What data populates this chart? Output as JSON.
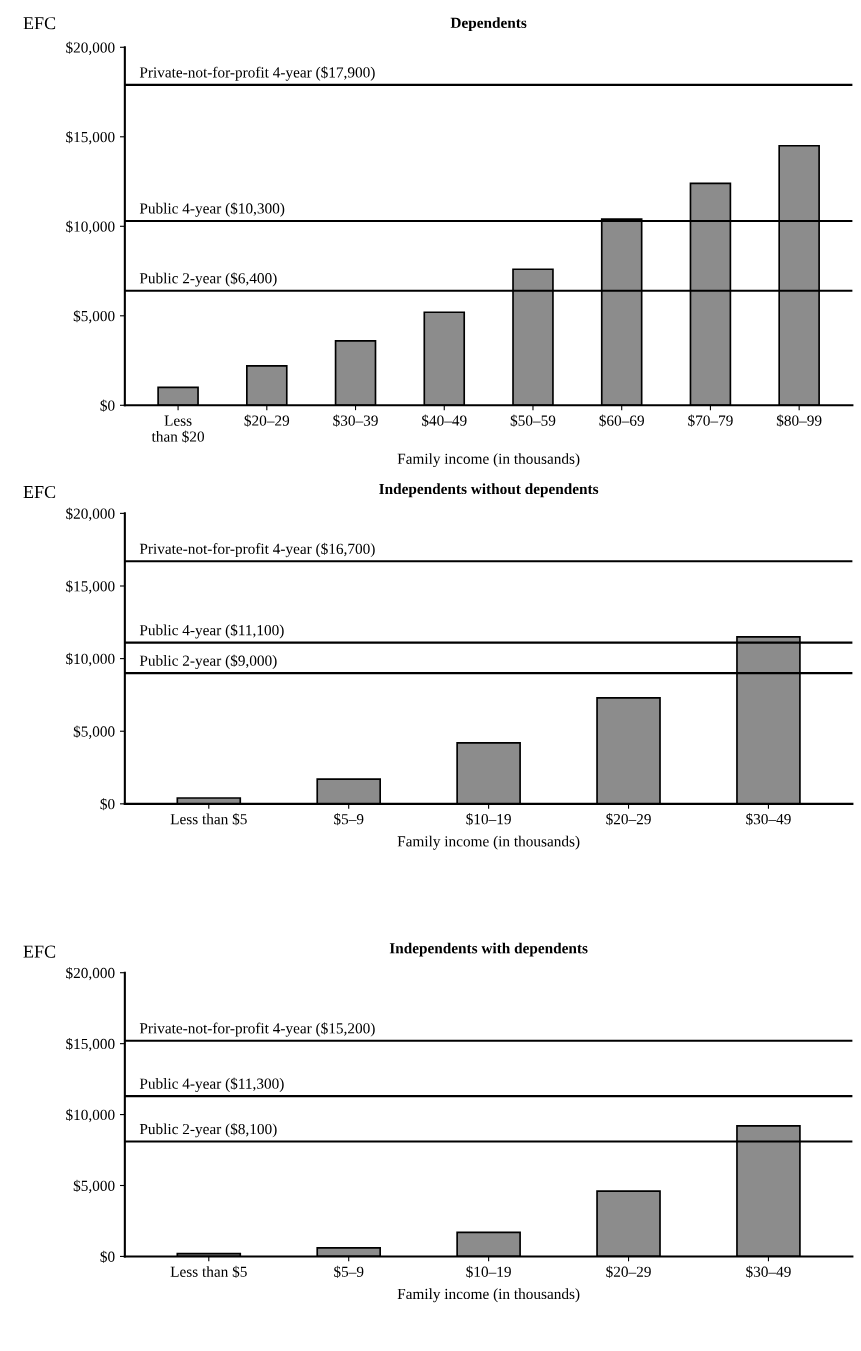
{
  "chart_data": [
    {
      "type": "bar",
      "title": "Dependents",
      "ylabel": "EFC",
      "xlabel": "Family income (in thousands)",
      "categories": [
        "Less\nthan $20",
        "$20–29",
        "$30–39",
        "$40–49",
        "$50–59",
        "$60–69",
        "$70–79",
        "$80–99"
      ],
      "values": [
        1000,
        2200,
        3600,
        5200,
        7600,
        10400,
        12400,
        14500
      ],
      "color": "#8c8c8c",
      "ylim": [
        0,
        20000
      ],
      "yticks": [
        {
          "value": 0,
          "label": "$0"
        },
        {
          "value": 5000,
          "label": "$5,000"
        },
        {
          "value": 10000,
          "label": "$10,000"
        },
        {
          "value": 15000,
          "label": "$15,000"
        },
        {
          "value": 20000,
          "label": "$20,000"
        }
      ],
      "ref_lines": [
        {
          "axis": "y",
          "value": 17900,
          "label": "Private-not-for-profit 4-year ($17,900)",
          "color": "#000000"
        },
        {
          "axis": "y",
          "value": 10300,
          "label": "Public 4-year ($10,300)",
          "color": "#000000"
        },
        {
          "axis": "y",
          "value": 6400,
          "label": "Public 2-year ($6,400)",
          "color": "#000000"
        }
      ],
      "grid": false,
      "legend": false
    },
    {
      "type": "bar",
      "title": "Independents without dependents",
      "ylabel": "EFC",
      "xlabel": "Family income (in thousands)",
      "categories": [
        "Less than $5",
        "$5–9",
        "$10–19",
        "$20–29",
        "$30–49"
      ],
      "values": [
        400,
        1700,
        4200,
        7300,
        11500
      ],
      "color": "#8c8c8c",
      "ylim": [
        0,
        20000
      ],
      "yticks": [
        {
          "value": 0,
          "label": "$0"
        },
        {
          "value": 5000,
          "label": "$5,000"
        },
        {
          "value": 10000,
          "label": "$10,000"
        },
        {
          "value": 15000,
          "label": "$15,000"
        },
        {
          "value": 20000,
          "label": "$20,000"
        }
      ],
      "ref_lines": [
        {
          "axis": "y",
          "value": 16700,
          "label": "Private-not-for-profit 4-year ($16,700)",
          "color": "#000000"
        },
        {
          "axis": "y",
          "value": 11100,
          "label": "Public 4-year ($11,100)",
          "color": "#000000"
        },
        {
          "axis": "y",
          "value": 9000,
          "label": "Public 2-year ($9,000)",
          "color": "#000000"
        }
      ],
      "grid": false,
      "legend": false
    },
    {
      "type": "bar",
      "title": "Independents with dependents",
      "ylabel": "EFC",
      "xlabel": "Family income (in thousands)",
      "categories": [
        "Less than $5",
        "$5–9",
        "$10–19",
        "$20–29",
        "$30–49"
      ],
      "values": [
        200,
        600,
        1700,
        4600,
        9200
      ],
      "color": "#8c8c8c",
      "ylim": [
        0,
        20000
      ],
      "yticks": [
        {
          "value": 0,
          "label": "$0"
        },
        {
          "value": 5000,
          "label": "$5,000"
        },
        {
          "value": 10000,
          "label": "$10,000"
        },
        {
          "value": 15000,
          "label": "$15,000"
        },
        {
          "value": 20000,
          "label": "$20,000"
        }
      ],
      "ref_lines": [
        {
          "axis": "y",
          "value": 15200,
          "label": "Private-not-for-profit 4-year ($15,200)",
          "color": "#000000"
        },
        {
          "axis": "y",
          "value": 11300,
          "label": "Public 4-year ($11,300)",
          "color": "#000000"
        },
        {
          "axis": "y",
          "value": 8100,
          "label": "Public 2-year ($8,100)",
          "color": "#000000"
        }
      ],
      "grid": false,
      "legend": false
    }
  ]
}
